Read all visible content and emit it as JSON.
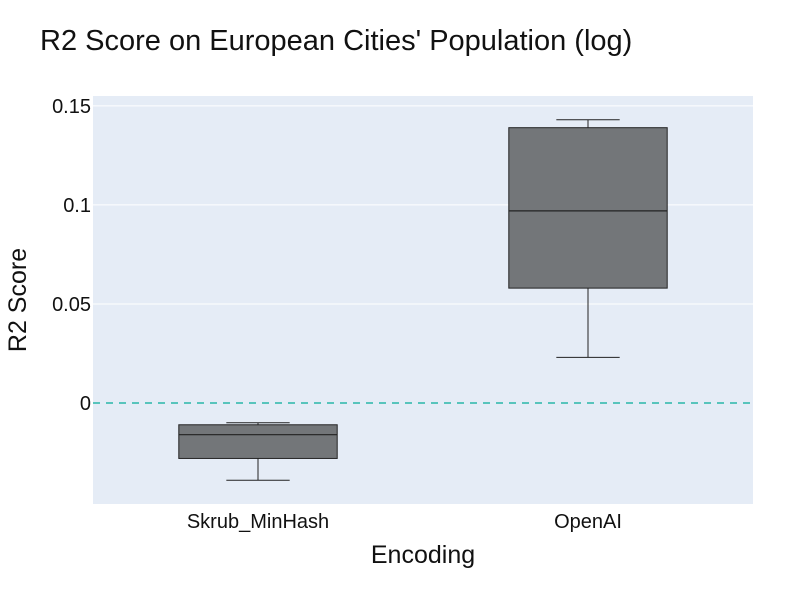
{
  "chart_data": {
    "type": "box",
    "title": "R2 Score on European Cities' Population (log)",
    "xlabel": "Encoding",
    "ylabel": "R2 Score",
    "categories": [
      "Skrub_MinHash",
      "OpenAI"
    ],
    "boxes": [
      {
        "category": "Skrub_MinHash",
        "whisker_low": -0.039,
        "q1": -0.028,
        "median": -0.016,
        "q3": -0.011,
        "whisker_high": -0.01
      },
      {
        "category": "OpenAI",
        "whisker_low": 0.023,
        "q1": 0.058,
        "median": 0.097,
        "q3": 0.139,
        "whisker_high": 0.143
      }
    ],
    "ylim": [
      -0.051,
      0.155
    ],
    "y_ticks": [
      {
        "value": 0,
        "label": "0"
      },
      {
        "value": 0.05,
        "label": "0.05"
      },
      {
        "value": 0.1,
        "label": "0.1"
      },
      {
        "value": 0.15,
        "label": "0.15"
      }
    ],
    "reference_line": {
      "value": 0,
      "style": "dashed",
      "color": "#2ab7a9"
    },
    "grid": true,
    "colors": {
      "plot_background": "#e5ecf6",
      "box_fill": "#737679",
      "box_line": "#222222",
      "grid": "#ffffff"
    }
  }
}
